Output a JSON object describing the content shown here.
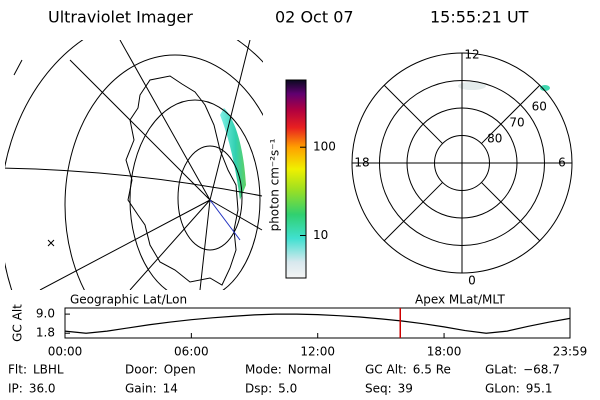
{
  "header": {
    "title": "Ultraviolet Imager",
    "date": "02 Oct 07",
    "time": "15:55:21 UT"
  },
  "colorbar": {
    "label": "photon cm⁻²s⁻¹",
    "scale": "log",
    "lim": [
      3.3,
      577
    ],
    "ticks": [
      10,
      100
    ]
  },
  "geo_map": {
    "label": "Geographic Lat/Lon"
  },
  "polar": {
    "label": "Apex MLat/MLT",
    "mlt_labels": [
      12,
      6,
      0,
      18
    ],
    "lat_labels": [
      60,
      70,
      80
    ],
    "lat_lim": [
      50,
      90
    ]
  },
  "chart_data": {
    "type": "line",
    "y_label": "GC Alt",
    "x": [
      0,
      1,
      2,
      3,
      4,
      5,
      6,
      7,
      8,
      9,
      10,
      11,
      12,
      13,
      14,
      15,
      16,
      17,
      18,
      19,
      20,
      21,
      22,
      23,
      23.98
    ],
    "values": [
      2.6,
      1.8,
      2.6,
      3.8,
      5.0,
      6.0,
      6.9,
      7.6,
      8.2,
      8.7,
      9.0,
      9.0,
      8.8,
      8.4,
      7.9,
      7.2,
      6.4,
      5.4,
      4.2,
      2.8,
      1.8,
      2.6,
      4.4,
      6.0,
      7.4
    ],
    "xlim": [
      0,
      23.98
    ],
    "xticks": [
      {
        "value": 0,
        "label": "00:00"
      },
      {
        "value": 6,
        "label": "06:00"
      },
      {
        "value": 12,
        "label": "12:00"
      },
      {
        "value": 18,
        "label": "18:00"
      },
      {
        "value": 23.98,
        "label": "23:59"
      }
    ],
    "ylim": [
      0,
      11.3
    ],
    "yticks": [
      {
        "value": 9,
        "label": "9.0"
      },
      {
        "value": 1.8,
        "label": "1.8"
      }
    ],
    "color": "#000000",
    "marker_x": 15.92,
    "marker_color": "#cc0000"
  },
  "info": [
    [
      {
        "label": "Flt:",
        "value": "LBHL"
      },
      {
        "label": "Door:",
        "value": "Open"
      },
      {
        "label": "Mode:",
        "value": "Normal"
      },
      {
        "label": "GC Alt:",
        "value": "6.5 Re"
      },
      {
        "label": "GLat:",
        "value": "−68.7"
      }
    ],
    [
      {
        "label": "IP:",
        "value": "36.0"
      },
      {
        "label": "Gain:",
        "value": "14"
      },
      {
        "label": "Dsp:",
        "value": "5.0"
      },
      {
        "label": "Seq:",
        "value": "39"
      },
      {
        "label": "GLon:",
        "value": "95.1"
      }
    ]
  ]
}
